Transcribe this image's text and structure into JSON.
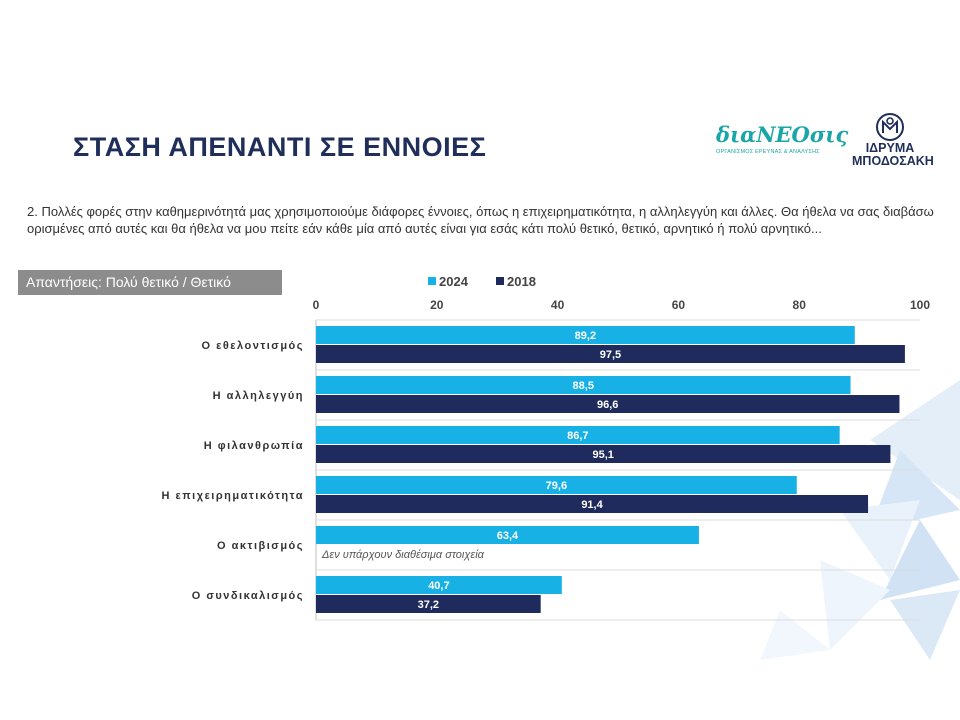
{
  "header": {
    "title": "ΣΤΑΣΗ ΑΠΕΝΑΝΤΙ ΣΕ ΕΝΝΟΙΕΣ",
    "logo_dianeosis": "διαΝΕΟσις",
    "logo_dianeosis_sub": "ΟΡΓΑΝΙΣΜΟΣ ΕΡΕΥΝΑΣ & ΑΝΑΛΥΣΗΣ",
    "logo_foundation_line1": "ΙΔΡΥΜΑ",
    "logo_foundation_line2": "ΜΠΟΔΟΣΑΚΗ"
  },
  "question": "2. Πολλές φορές στην καθημερινότητά μας χρησιμοποιούμε διάφορες έννοιες, όπως η επιχειρηματικότητα, η αλληλεγγύη και άλλες. Θα ήθελα να σας διαβάσω ορισμένες από αυτές και θα ήθελα να μου πείτε εάν κάθε μία από αυτές είναι για εσάς κάτι πολύ θετικό, θετικό, αρνητικό ή πολύ αρνητικό...",
  "answers_label": "Απαντήσεις: Πολύ θετικό / Θετικό",
  "colors": {
    "s2024": "#17b1e6",
    "s2018": "#1f2b5c",
    "title": "#1f2f5a"
  },
  "chart_data": {
    "type": "bar",
    "orientation": "horizontal",
    "categories": [
      "Ο εθελοντισμός",
      "Η αλληλεγγύη",
      "Η φιλανθρωπία",
      "Η επιχειρηματικότητα",
      "Ο ακτιβισμός",
      "Ο συνδικαλισμός"
    ],
    "series": [
      {
        "name": "2024",
        "values": [
          89.2,
          88.5,
          86.7,
          79.6,
          63.4,
          40.7
        ],
        "labels": [
          "89,2",
          "88,5",
          "86,7",
          "79,6",
          "63,4",
          "40,7"
        ]
      },
      {
        "name": "2018",
        "values": [
          97.5,
          96.6,
          95.1,
          91.4,
          null,
          37.2
        ],
        "labels": [
          "97,5",
          "96,6",
          "95,1",
          "91,4",
          "",
          "37,2"
        ]
      }
    ],
    "xlim": [
      0,
      100
    ],
    "xticks": [
      "0",
      "20",
      "40",
      "60",
      "80",
      "100"
    ],
    "legend_position": "top",
    "missing_note": "Δεν υπάρχουν διαθέσιμα στοιχεία",
    "title": "",
    "xlabel": "",
    "ylabel": ""
  }
}
